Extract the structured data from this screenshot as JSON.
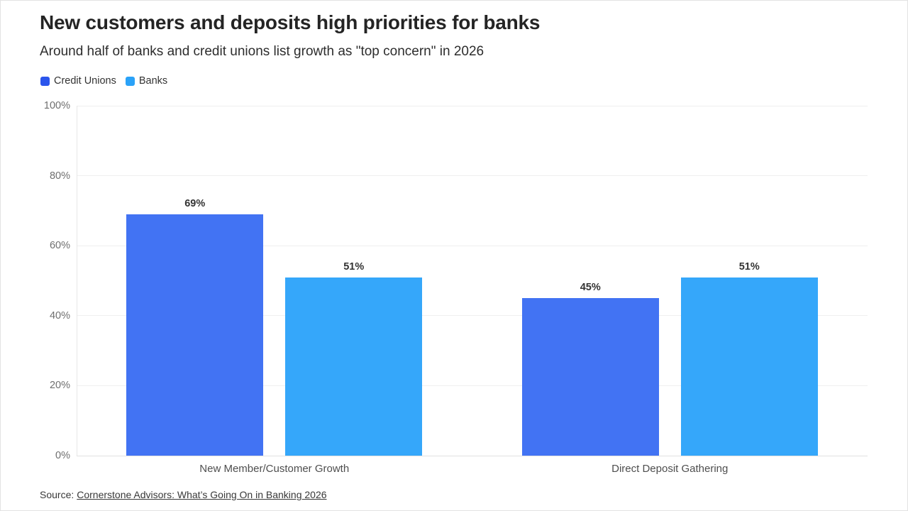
{
  "header": {
    "title": "New customers and deposits high priorities for banks",
    "subtitle": "Around half of banks and credit unions list growth as \"top concern\" in 2026"
  },
  "legend": [
    {
      "label": "Credit Unions",
      "color": "#2b55ec"
    },
    {
      "label": "Banks",
      "color": "#2aa2f8"
    }
  ],
  "chart_data": {
    "type": "bar",
    "title": "New customers and deposits high priorities for banks",
    "subtitle": "Around half of banks and credit unions list growth as \"top concern\" in 2026",
    "categories": [
      "New Member/Customer Growth",
      "Direct Deposit Gathering"
    ],
    "series": [
      {
        "name": "Credit Unions",
        "color": "#4273f3",
        "values": [
          69,
          45
        ]
      },
      {
        "name": "Banks",
        "color": "#35a7fa",
        "values": [
          51,
          51
        ]
      }
    ],
    "value_label_suffix": "%",
    "yticks": [
      "0%",
      "20%",
      "40%",
      "60%",
      "80%",
      "100%"
    ],
    "ylim": [
      0,
      100
    ],
    "xlabel": "",
    "ylabel": "",
    "grid": true,
    "legend_position": "top-left"
  },
  "footer": {
    "source_prefix": "Source:",
    "source_link": "Cornerstone Advisors: What’s Going On in Banking 2026"
  }
}
